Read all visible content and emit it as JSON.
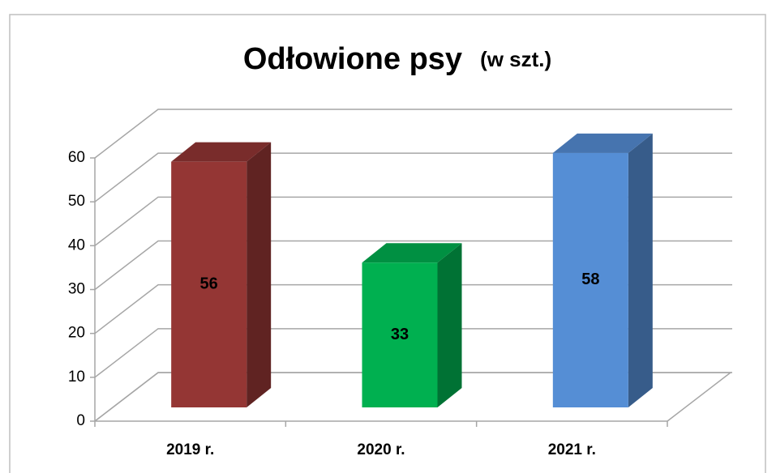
{
  "chart_data": {
    "type": "bar3d",
    "title": "Odłowione psy",
    "subtitle": "(w szt.)",
    "categories": [
      "2019 r.",
      "2020 r.",
      "2021 r."
    ],
    "values": [
      56,
      33,
      58
    ],
    "colors": [
      "#943634",
      "#00b050",
      "#558ed5"
    ],
    "ylim": [
      0,
      60
    ],
    "yticks": [
      0,
      10,
      20,
      30,
      40,
      50,
      60
    ],
    "grid": true
  }
}
